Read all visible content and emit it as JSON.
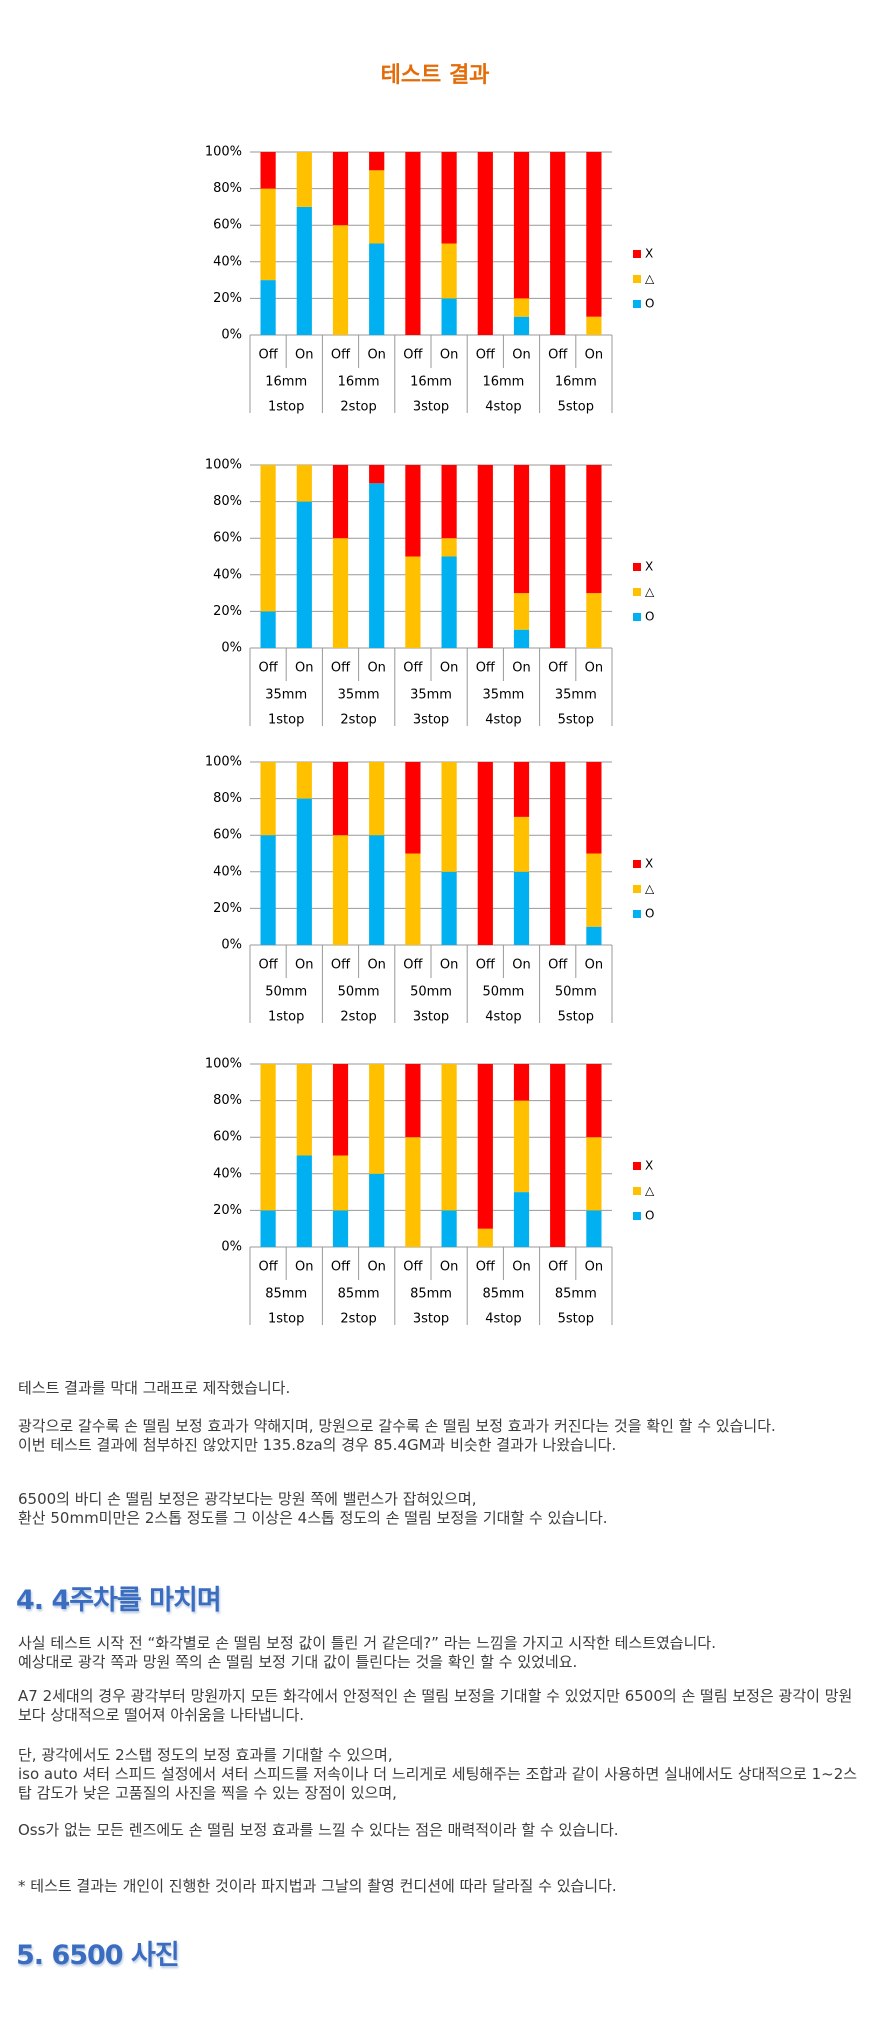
{
  "title": "테스트 결과",
  "chart_data": [
    {
      "type": "stacked_bar",
      "categories": [
        "Off",
        "On",
        "Off",
        "On",
        "Off",
        "On",
        "Off",
        "On",
        "Off",
        "On"
      ],
      "groups": [
        [
          "16mm",
          "1stop"
        ],
        [
          "16mm",
          "2stop"
        ],
        [
          "16mm",
          "3stop"
        ],
        [
          "16mm",
          "4stop"
        ],
        [
          "16mm",
          "5stop"
        ]
      ],
      "ylim": [
        0,
        100
      ],
      "yticks": [
        {
          "value": 0,
          "label": "0%"
        },
        {
          "value": 20,
          "label": "20%"
        },
        {
          "value": 40,
          "label": "40%"
        },
        {
          "value": 60,
          "label": "60%"
        },
        {
          "value": 80,
          "label": "80%"
        },
        {
          "value": 100,
          "label": "100%"
        }
      ],
      "grid": true,
      "series": [
        {
          "name": "O",
          "color": "#00b0f0",
          "values": [
            30,
            70,
            0,
            50,
            0,
            20,
            0,
            10,
            0,
            0
          ]
        },
        {
          "name": "△",
          "color": "#ffc000",
          "values": [
            50,
            30,
            60,
            40,
            0,
            30,
            0,
            10,
            0,
            10
          ]
        },
        {
          "name": "X",
          "color": "#ff0000",
          "values": [
            20,
            0,
            40,
            10,
            100,
            50,
            100,
            80,
            100,
            90
          ]
        }
      ]
    },
    {
      "type": "stacked_bar",
      "categories": [
        "Off",
        "On",
        "Off",
        "On",
        "Off",
        "On",
        "Off",
        "On",
        "Off",
        "On"
      ],
      "groups": [
        [
          "35mm",
          "1stop"
        ],
        [
          "35mm",
          "2stop"
        ],
        [
          "35mm",
          "3stop"
        ],
        [
          "35mm",
          "4stop"
        ],
        [
          "35mm",
          "5stop"
        ]
      ],
      "ylim": [
        0,
        100
      ],
      "yticks": [
        {
          "value": 0,
          "label": "0%"
        },
        {
          "value": 20,
          "label": "20%"
        },
        {
          "value": 40,
          "label": "40%"
        },
        {
          "value": 60,
          "label": "60%"
        },
        {
          "value": 80,
          "label": "80%"
        },
        {
          "value": 100,
          "label": "100%"
        }
      ],
      "grid": true,
      "series": [
        {
          "name": "O",
          "color": "#00b0f0",
          "values": [
            20,
            80,
            0,
            90,
            0,
            50,
            0,
            10,
            0,
            0
          ]
        },
        {
          "name": "△",
          "color": "#ffc000",
          "values": [
            80,
            20,
            60,
            0,
            50,
            10,
            0,
            20,
            0,
            30
          ]
        },
        {
          "name": "X",
          "color": "#ff0000",
          "values": [
            0,
            0,
            40,
            10,
            50,
            40,
            100,
            70,
            100,
            70
          ]
        }
      ]
    },
    {
      "type": "stacked_bar",
      "categories": [
        "Off",
        "On",
        "Off",
        "On",
        "Off",
        "On",
        "Off",
        "On",
        "Off",
        "On"
      ],
      "groups": [
        [
          "50mm",
          "1stop"
        ],
        [
          "50mm",
          "2stop"
        ],
        [
          "50mm",
          "3stop"
        ],
        [
          "50mm",
          "4stop"
        ],
        [
          "50mm",
          "5stop"
        ]
      ],
      "ylim": [
        0,
        100
      ],
      "yticks": [
        {
          "value": 0,
          "label": "0%"
        },
        {
          "value": 20,
          "label": "20%"
        },
        {
          "value": 40,
          "label": "40%"
        },
        {
          "value": 60,
          "label": "60%"
        },
        {
          "value": 80,
          "label": "80%"
        },
        {
          "value": 100,
          "label": "100%"
        }
      ],
      "grid": true,
      "series": [
        {
          "name": "O",
          "color": "#00b0f0",
          "values": [
            60,
            80,
            0,
            60,
            0,
            40,
            0,
            40,
            0,
            10
          ]
        },
        {
          "name": "△",
          "color": "#ffc000",
          "values": [
            40,
            20,
            60,
            40,
            50,
            60,
            0,
            30,
            0,
            40
          ]
        },
        {
          "name": "X",
          "color": "#ff0000",
          "values": [
            0,
            0,
            40,
            0,
            50,
            0,
            100,
            30,
            100,
            50
          ]
        }
      ]
    },
    {
      "type": "stacked_bar",
      "categories": [
        "Off",
        "On",
        "Off",
        "On",
        "Off",
        "On",
        "Off",
        "On",
        "Off",
        "On"
      ],
      "groups": [
        [
          "85mm",
          "1stop"
        ],
        [
          "85mm",
          "2stop"
        ],
        [
          "85mm",
          "3stop"
        ],
        [
          "85mm",
          "4stop"
        ],
        [
          "85mm",
          "5stop"
        ]
      ],
      "ylim": [
        0,
        100
      ],
      "yticks": [
        {
          "value": 0,
          "label": "0%"
        },
        {
          "value": 20,
          "label": "20%"
        },
        {
          "value": 40,
          "label": "40%"
        },
        {
          "value": 60,
          "label": "60%"
        },
        {
          "value": 80,
          "label": "80%"
        },
        {
          "value": 100,
          "label": "100%"
        }
      ],
      "grid": true,
      "series": [
        {
          "name": "O",
          "color": "#00b0f0",
          "values": [
            20,
            50,
            20,
            40,
            0,
            20,
            0,
            30,
            0,
            20
          ]
        },
        {
          "name": "△",
          "color": "#ffc000",
          "values": [
            80,
            50,
            30,
            60,
            60,
            80,
            10,
            50,
            0,
            40
          ]
        },
        {
          "name": "X",
          "color": "#ff0000",
          "values": [
            0,
            0,
            50,
            0,
            40,
            0,
            90,
            20,
            100,
            40
          ]
        }
      ]
    }
  ],
  "paragraphs": [
    [
      "테스트 결과를 막대 그래프로 제작했습니다."
    ],
    [
      "광각으로 갈수록 손 떨림 보정 효과가 약해지며, 망원으로 갈수록 손 떨림 보정 효과가 커진다는 것을 확인 할 수 있습니다.",
      "이번 테스트 결과에 첨부하진 않았지만 135.8za의 경우 85.4GM과 비슷한 결과가 나왔습니다."
    ],
    [
      "6500의 바디 손 떨림 보정은 광각보다는 망원 쪽에 밸런스가 잡혀있으며,",
      "환산 50mm미만은 2스톱 정도를 그 이상은 4스톱 정도의 손 떨림 보정을 기대할 수 있습니다."
    ],
    [
      "사실 테스트 시작 전 “화각별로 손 떨림 보정 값이 틀린 거 같은데?” 라는 느낌을 가지고 시작한 테스트였습니다.",
      "예상대로 광각 쪽과 망원 쪽의 손 떨림 보정 기대 값이 틀린다는 것을 확인 할 수 있었네요."
    ],
    [
      "A7 2세대의 경우 광각부터 망원까지 모든 화각에서 안정적인 손 떨림 보정을 기대할 수 있었지만 6500의 손 떨림 보정은 광각이 망원보다 상대적으로 떨어져 아쉬움을 나타냅니다."
    ],
    [
      "단, 광각에서도 2스탭 정도의 보정 효과를 기대할 수 있으며,",
      "iso auto 셔터 스피드 설정에서 셔터 스피드를 저속이나 더 느리게로 세팅해주는 조합과 같이 사용하면 실내에서도 상대적으로 1~2스탑 감도가 낮은 고품질의 사진을 찍을 수 있는 장점이 있으며,"
    ],
    [
      "Oss가 없는 모든 렌즈에도 손 떨림 보정 효과를 느낄 수 있다는 점은 매력적이라 할 수 있습니다."
    ],
    [
      "* 테스트 결과는 개인이 진행한 것이라 파지법과 그날의 촬영 컨디션에 따라 달라질 수 있습니다."
    ]
  ],
  "headings": [
    "4. 4주차를 마치며",
    "5. 6500 사진"
  ]
}
